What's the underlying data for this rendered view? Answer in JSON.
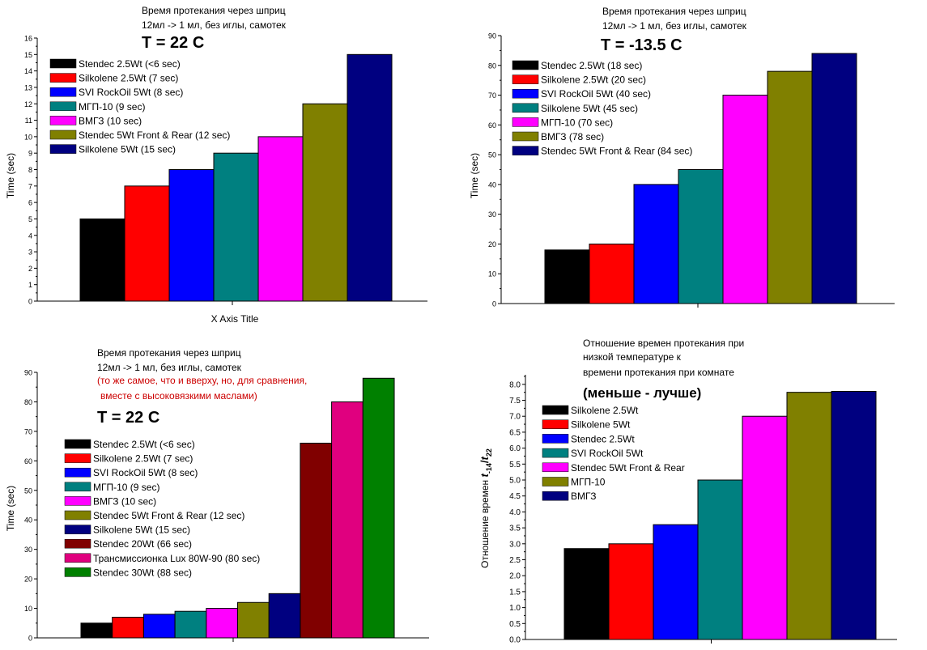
{
  "charts": {
    "c1": {
      "title_lines": [
        "Время протекания через шприц",
        "12мл -> 1 мл, без иглы, самотек"
      ],
      "temp": "T = 22 C",
      "ylabel": "Time (sec)",
      "xlabel": "X  Axis Title",
      "yticks": [
        "0",
        "1",
        "2",
        "3",
        "4",
        "5",
        "6",
        "7",
        "8",
        "9",
        "10",
        "11",
        "12",
        "13",
        "14",
        "15",
        "16"
      ]
    },
    "c2": {
      "title_lines": [
        "Время протекания через шприц",
        "12мл -> 1 мл, без иглы, самотек"
      ],
      "temp": "T = -13.5 C",
      "ylabel": "Time (sec)",
      "yticks": [
        "0",
        "10",
        "20",
        "30",
        "40",
        "50",
        "60",
        "70",
        "80",
        "90"
      ]
    },
    "c3": {
      "title_lines": [
        "Время протекания через шприц",
        "12мл -> 1 мл, без иглы, самотек"
      ],
      "note_lines": [
        "(то же самое, что и вверху, но, для сравнения,",
        "вместе с высоковязкими маслами)"
      ],
      "temp": "T = 22 C",
      "ylabel": "Time (sec)",
      "yticks": [
        "0",
        "10",
        "20",
        "30",
        "40",
        "50",
        "60",
        "70",
        "80",
        "90"
      ]
    },
    "c4": {
      "title_lines": [
        "Отношение времен протекания при",
        "низкой температуре к",
        "времени протекания при комнате"
      ],
      "subtitle": "(меньше - лучше)",
      "ylabel": "Отношение времен t-14/t22",
      "yticks": [
        "0.0",
        "0.5",
        "1.0",
        "1.5",
        "2.0",
        "2.5",
        "3.0",
        "3.5",
        "4.0",
        "4.5",
        "5.0",
        "5.5",
        "6.0",
        "6.5",
        "7.0",
        "7.5",
        "8.0"
      ]
    }
  },
  "chart_data": [
    {
      "type": "bar",
      "title": "Время протекания через шприц 12мл -> 1 мл, без иглы, самотек — T = 22 C",
      "xlabel": "X  Axis Title",
      "ylabel": "Time (sec)",
      "ylim": [
        0,
        16
      ],
      "legend_position": "top-left",
      "series": [
        {
          "name": "Stendec 2.5Wt (<6 sec)",
          "values": [
            5
          ],
          "color": "#000000"
        },
        {
          "name": "Silkolene 2.5Wt (7 sec)",
          "values": [
            7
          ],
          "color": "#ff0000"
        },
        {
          "name": "SVI RockOil 5Wt (8 sec)",
          "values": [
            8
          ],
          "color": "#0000ff"
        },
        {
          "name": "МГП-10 (9 sec)",
          "values": [
            9
          ],
          "color": "#008080"
        },
        {
          "name": "ВМГЗ (10 sec)",
          "values": [
            10
          ],
          "color": "#ff00ff"
        },
        {
          "name": "Stendec 5Wt Front & Rear (12 sec)",
          "values": [
            12
          ],
          "color": "#808000"
        },
        {
          "name": "Silkolene 5Wt (15 sec)",
          "values": [
            15
          ],
          "color": "#000080"
        }
      ]
    },
    {
      "type": "bar",
      "title": "Время протекания через шприц 12мл -> 1 мл, без иглы, самотек — T = -13.5 C",
      "xlabel": "",
      "ylabel": "Time (sec)",
      "ylim": [
        0,
        90
      ],
      "legend_position": "top-left",
      "series": [
        {
          "name": "Stendec 2.5Wt (18 sec)",
          "values": [
            18
          ],
          "color": "#000000"
        },
        {
          "name": "Silkolene 2.5Wt (20 sec)",
          "values": [
            20
          ],
          "color": "#ff0000"
        },
        {
          "name": "SVI RockOil 5Wt (40 sec)",
          "values": [
            40
          ],
          "color": "#0000ff"
        },
        {
          "name": "Silkolene 5Wt (45 sec)",
          "values": [
            45
          ],
          "color": "#008080"
        },
        {
          "name": "МГП-10 (70 sec)",
          "values": [
            70
          ],
          "color": "#ff00ff"
        },
        {
          "name": "ВМГЗ (78 sec)",
          "values": [
            78
          ],
          "color": "#808000"
        },
        {
          "name": "Stendec 5Wt Front & Rear (84 sec)",
          "values": [
            84
          ],
          "color": "#000080"
        }
      ]
    },
    {
      "type": "bar",
      "title": "Время протекания через шприц 12мл -> 1 мл, без иглы, самотек — T = 22 C",
      "xlabel": "",
      "ylabel": "Time (sec)",
      "ylim": [
        0,
        90
      ],
      "legend_position": "left",
      "series": [
        {
          "name": "Stendec 2.5Wt (<6 sec)",
          "values": [
            5
          ],
          "color": "#000000"
        },
        {
          "name": "Silkolene 2.5Wt (7 sec)",
          "values": [
            7
          ],
          "color": "#ff0000"
        },
        {
          "name": "SVI RockOil 5Wt (8 sec)",
          "values": [
            8
          ],
          "color": "#0000ff"
        },
        {
          "name": "МГП-10 (9 sec)",
          "values": [
            9
          ],
          "color": "#008080"
        },
        {
          "name": "ВМГЗ (10 sec)",
          "values": [
            10
          ],
          "color": "#ff00ff"
        },
        {
          "name": "Stendec 5Wt Front & Rear (12 sec)",
          "values": [
            12
          ],
          "color": "#808000"
        },
        {
          "name": "Silkolene 5Wt (15 sec)",
          "values": [
            15
          ],
          "color": "#000080"
        },
        {
          "name": "Stendec 20Wt (66 sec)",
          "values": [
            66
          ],
          "color": "#800000"
        },
        {
          "name": "Трансмиссионка Lux 80W-90 (80 sec)",
          "values": [
            80
          ],
          "color": "#e0007f"
        },
        {
          "name": "Stendec 30Wt (88 sec)",
          "values": [
            88
          ],
          "color": "#008000"
        }
      ]
    },
    {
      "type": "bar",
      "title": "Отношение времен протекания при низкой температуре к времени протекания при комнате (меньше - лучше)",
      "xlabel": "",
      "ylabel": "Отношение времен t-14/t22",
      "ylim": [
        0,
        8.3
      ],
      "legend_position": "top-left",
      "series": [
        {
          "name": "Silkolene 2.5Wt",
          "values": [
            2.85
          ],
          "color": "#000000"
        },
        {
          "name": "Silkolene 5Wt",
          "values": [
            3.0
          ],
          "color": "#ff0000"
        },
        {
          "name": "Stendec 2.5Wt",
          "values": [
            3.6
          ],
          "color": "#0000ff"
        },
        {
          "name": "SVI RockOil 5Wt",
          "values": [
            5.0
          ],
          "color": "#008080"
        },
        {
          "name": "Stendec 5Wt Front & Rear",
          "values": [
            7.0
          ],
          "color": "#ff00ff"
        },
        {
          "name": "МГП-10",
          "values": [
            7.75
          ],
          "color": "#808000"
        },
        {
          "name": "ВМГЗ",
          "values": [
            7.78
          ],
          "color": "#000080"
        }
      ]
    }
  ]
}
